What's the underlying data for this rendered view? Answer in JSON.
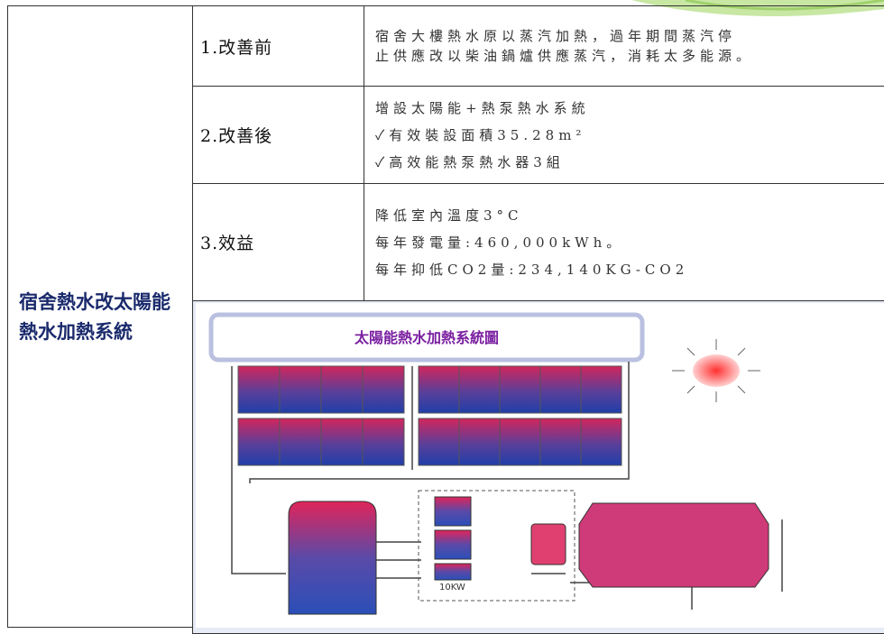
{
  "row_header": "宿舍熱水改太陽能熱水加熱系統",
  "rows": [
    {
      "label": "1.改善前",
      "lines": [
        "宿舍大樓熱水原以蒸汽加熱，過年期間蒸汽停",
        "止供應改以柴油鍋爐供應蒸汽，消耗太多能源。"
      ]
    },
    {
      "label": "2.改善後",
      "lines": [
        "增設太陽能+熱泵熱水系統",
        "✓有效裝設面積35.28m²",
        "✓高效能熱泵熱水器3組"
      ]
    },
    {
      "label": "3.效益",
      "lines": [
        "降低室內溫度3°C",
        "每年發電量:460,000kWh。",
        "每年抑低CO2量:234,140KG-CO2"
      ]
    }
  ],
  "diagram": {
    "title": "太陽能熱水加熱系統圖",
    "pump_label": "10KW"
  }
}
